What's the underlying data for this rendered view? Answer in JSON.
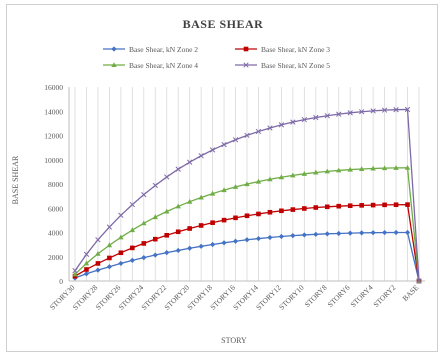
{
  "chart_data": {
    "type": "line",
    "title": "BASE SHEAR",
    "xlabel": "STORY",
    "ylabel": "BASE SHEAR",
    "ylim": [
      0,
      16000
    ],
    "yticks": [
      0,
      2000,
      4000,
      6000,
      8000,
      10000,
      12000,
      14000,
      16000
    ],
    "grid": "vertical",
    "legend_position": "top",
    "categories": [
      "STORY30",
      "STORY29",
      "STORY28",
      "STORY27",
      "STORY26",
      "STORY25",
      "STORY24",
      "STORY23",
      "STORY22",
      "STORY21",
      "STORY20",
      "STORY19",
      "STORY18",
      "STORY17",
      "STORY16",
      "STORY15",
      "STORY14",
      "STORY13",
      "STORY12",
      "STORY11",
      "STORY10",
      "STORY9",
      "STORY8",
      "STORY7",
      "STORY6",
      "STORY5",
      "STORY4",
      "STORY3",
      "STORY2",
      "STORY1",
      "BASE"
    ],
    "x_tick_labels": [
      "STORY30",
      "STORY28",
      "STORY26",
      "STORY24",
      "STORY22",
      "STORY20",
      "STORY18",
      "STORY16",
      "STORY14",
      "STORY12",
      "STORY10",
      "STORY8",
      "STORY6",
      "STORY4",
      "STORY2",
      "BASE"
    ],
    "series": [
      {
        "name": "Base Shear, kN Zone 2",
        "color": "#4472c4",
        "marker": "diamond",
        "values": [
          250,
          600,
          900,
          1180,
          1450,
          1700,
          1930,
          2140,
          2340,
          2520,
          2700,
          2860,
          3010,
          3150,
          3280,
          3400,
          3500,
          3590,
          3670,
          3740,
          3800,
          3850,
          3890,
          3920,
          3950,
          3970,
          3985,
          3995,
          4000,
          4000,
          0
        ]
      },
      {
        "name": "Base Shear, kN Zone 3",
        "color": "#c00000",
        "marker": "square",
        "values": [
          400,
          950,
          1450,
          1900,
          2330,
          2730,
          3100,
          3450,
          3770,
          4060,
          4330,
          4580,
          4810,
          5020,
          5210,
          5380,
          5530,
          5670,
          5790,
          5890,
          5980,
          6060,
          6120,
          6170,
          6210,
          6240,
          6260,
          6280,
          6290,
          6300,
          0
        ]
      },
      {
        "name": "Base Shear, kN Zone 4",
        "color": "#70ad47",
        "marker": "triangle",
        "values": [
          550,
          1450,
          2250,
          2950,
          3600,
          4200,
          4760,
          5270,
          5730,
          6150,
          6540,
          6890,
          7210,
          7500,
          7760,
          7990,
          8200,
          8390,
          8560,
          8710,
          8840,
          8950,
          9040,
          9120,
          9190,
          9240,
          9280,
          9310,
          9330,
          9340,
          0
        ]
      },
      {
        "name": "Base Shear, kN Zone 5",
        "color": "#7e6aa8",
        "marker": "x",
        "values": [
          850,
          2200,
          3400,
          4450,
          5420,
          6300,
          7120,
          7880,
          8580,
          9220,
          9800,
          10330,
          10810,
          11250,
          11650,
          12010,
          12330,
          12620,
          12880,
          13110,
          13310,
          13480,
          13630,
          13760,
          13870,
          13960,
          14030,
          14090,
          14130,
          14150,
          0
        ]
      }
    ]
  }
}
